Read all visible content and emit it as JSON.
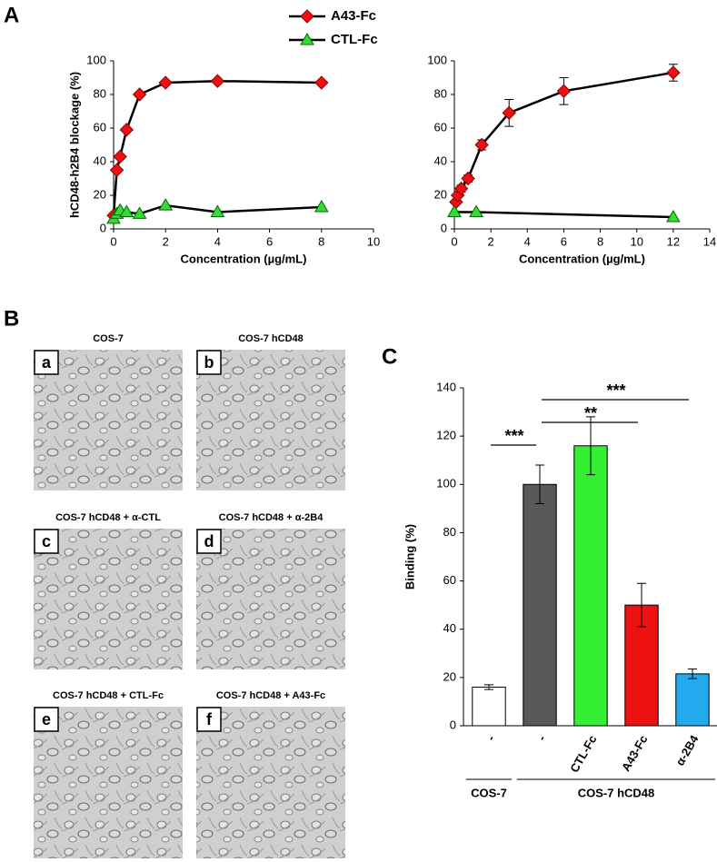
{
  "panel_labels": [
    "A",
    "B",
    "C"
  ],
  "images": [
    {
      "letter": "a",
      "caption": "COS-7"
    },
    {
      "letter": "b",
      "caption": "COS-7 hCD48"
    },
    {
      "letter": "c",
      "caption": "COS-7 hCD48 + α-CTL"
    },
    {
      "letter": "d",
      "caption": "COS-7 hCD48 + α-2B4"
    },
    {
      "letter": "e",
      "caption": "COS-7 hCD48 + CTL-Fc"
    },
    {
      "letter": "f",
      "caption": "COS-7 hCD48 + A43-Fc"
    }
  ],
  "chart_data": [
    {
      "type": "line",
      "ylabel": "hCD48-h2B4 blockage (%)",
      "xlabel": "Concentration (µg/mL)",
      "xlim": [
        0,
        10
      ],
      "xticks": [
        0,
        2,
        4,
        6,
        8,
        10
      ],
      "ylim": [
        0,
        100
      ],
      "yticks": [
        0,
        20,
        40,
        60,
        80,
        100
      ],
      "legend": true,
      "series": [
        {
          "name": "A43-Fc",
          "color": "#ee1111",
          "marker": "diamond",
          "x": [
            0,
            0.125,
            0.25,
            0.5,
            1,
            2,
            4,
            8
          ],
          "values": [
            8,
            35,
            43,
            59,
            80,
            87,
            88,
            87
          ]
        },
        {
          "name": "CTL-Fc",
          "color": "#33dd33",
          "marker": "triangle",
          "x": [
            0,
            0.125,
            0.25,
            0.5,
            1,
            2,
            4,
            8
          ],
          "values": [
            6,
            9,
            11,
            10,
            9,
            14,
            10,
            13
          ]
        }
      ]
    },
    {
      "type": "line",
      "xlabel": "Concentration (µg/mL)",
      "xlim": [
        0,
        14
      ],
      "xticks": [
        0,
        2,
        4,
        6,
        8,
        10,
        12,
        14
      ],
      "ylim": [
        0,
        100
      ],
      "yticks": [
        0,
        20,
        40,
        60,
        80,
        100
      ],
      "legend": false,
      "series": [
        {
          "color": "#ee1111",
          "marker": "diamond",
          "x": [
            0.09375,
            0.1875,
            0.375,
            0.75,
            1.5,
            3,
            6,
            12
          ],
          "values": [
            16,
            20,
            24,
            30,
            50,
            69,
            82,
            93
          ],
          "errors": [
            1,
            1,
            2,
            2,
            3,
            8,
            8,
            5
          ]
        },
        {
          "color": "#33dd33",
          "marker": "triangle",
          "x": [
            0,
            1.2,
            12
          ],
          "values": [
            10,
            10,
            7
          ]
        }
      ]
    },
    {
      "type": "bar",
      "ylabel": "Binding (%)",
      "categories": [
        "-",
        "-",
        "CTL-Fc",
        "A43-Fc",
        "α-2B4"
      ],
      "values": [
        16,
        100,
        116,
        50,
        21.5
      ],
      "errors": [
        1,
        8,
        12,
        9,
        2
      ],
      "colors": [
        "#ffffff",
        "#595959",
        "#33ee33",
        "#ee1111",
        "#22aaee"
      ],
      "ylim": [
        0,
        140
      ],
      "yticks": [
        0,
        20,
        40,
        60,
        80,
        100,
        120,
        140
      ],
      "significance": [
        {
          "from": 0,
          "to": 1,
          "label": "***"
        },
        {
          "from": 1,
          "to": 3,
          "label": "**"
        },
        {
          "from": 1,
          "to": 4,
          "label": "***"
        }
      ],
      "groups": [
        {
          "label": "COS-7",
          "from": 0,
          "to": 0
        },
        {
          "label": "COS-7 hCD48",
          "from": 1,
          "to": 4
        }
      ]
    }
  ]
}
